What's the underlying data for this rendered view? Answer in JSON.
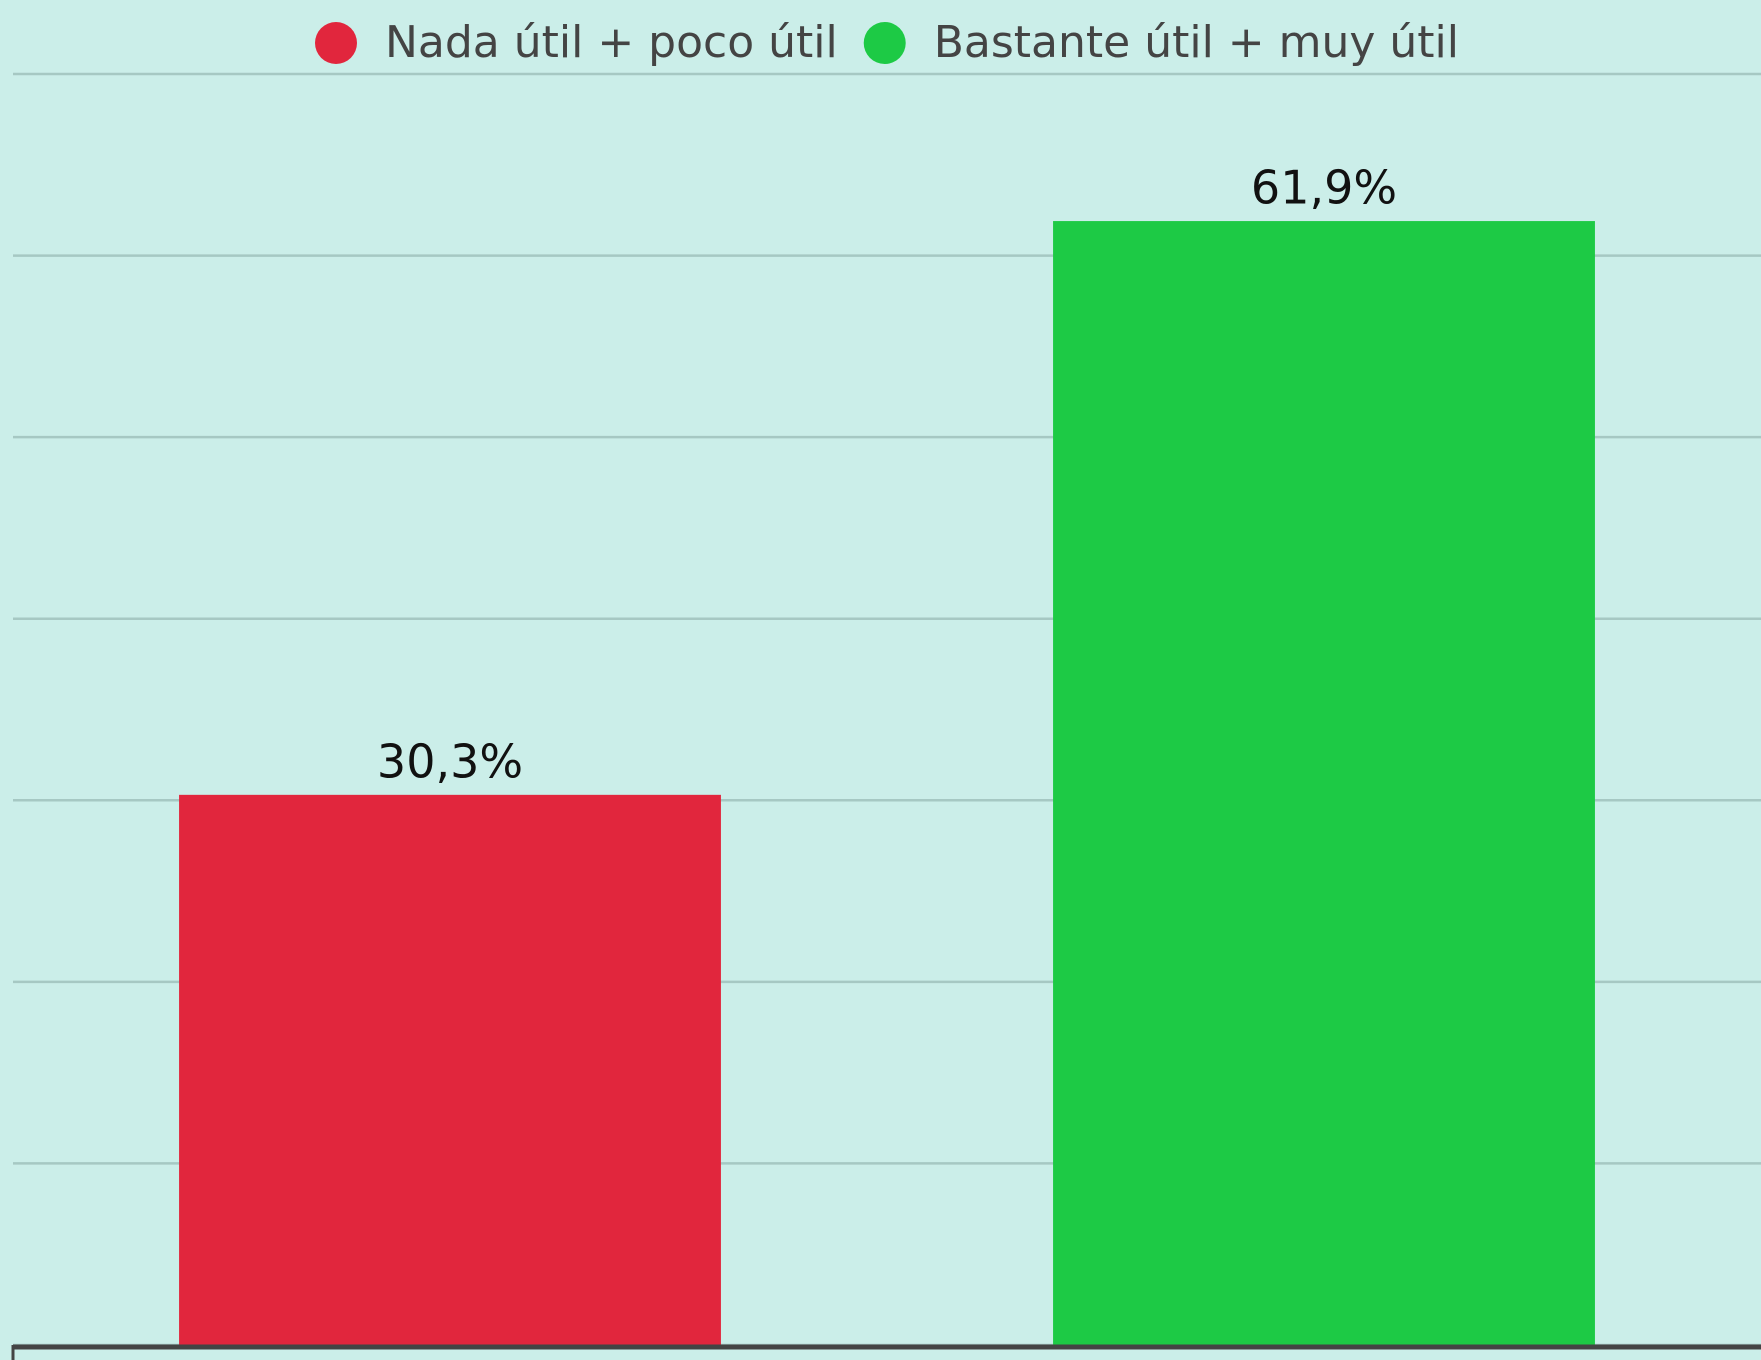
{
  "chart_data": {
    "type": "bar",
    "categories": [
      null
    ],
    "series": [
      {
        "name": "Nada útil + poco útil",
        "color": "#e1263d",
        "values": [
          30.3
        ],
        "value_labels": [
          "30,3%"
        ]
      },
      {
        "name": "Bastante útil + muy útil",
        "color": "#1dca45",
        "values": [
          61.9
        ],
        "value_labels": [
          "61,9%"
        ]
      }
    ],
    "ylim": [
      0,
      70
    ],
    "yticks": [
      0,
      10,
      20,
      30,
      40,
      50,
      60,
      70
    ],
    "grid": true,
    "legend": "top"
  }
}
